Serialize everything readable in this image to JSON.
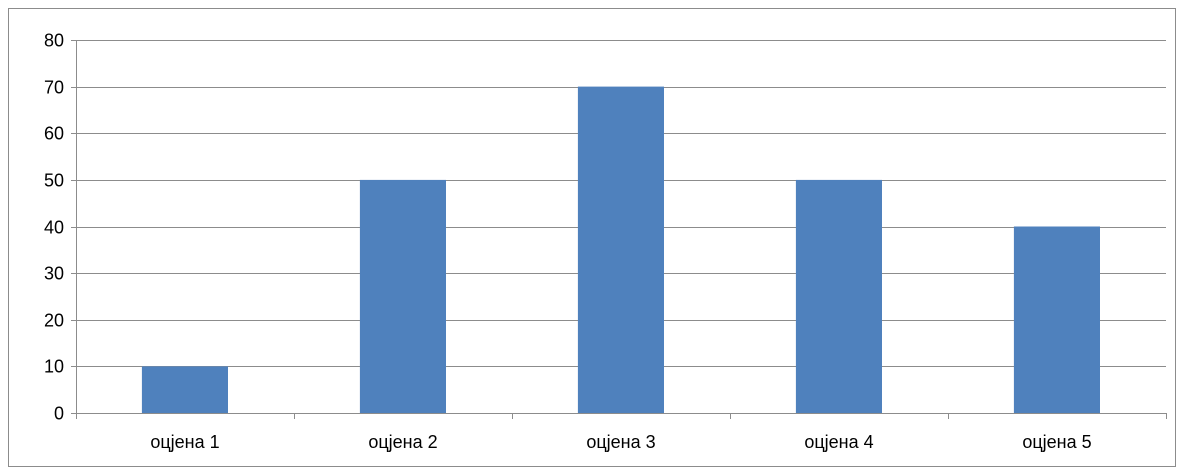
{
  "chart_data": {
    "type": "bar",
    "categories": [
      "оцјена 1",
      "оцјена 2",
      "оцјена 3",
      "оцјена 4",
      "оцјена 5"
    ],
    "values": [
      10,
      50,
      70,
      50,
      40
    ],
    "ylim": [
      0,
      80
    ],
    "yticks": [
      0,
      10,
      20,
      30,
      40,
      50,
      60,
      70,
      80
    ],
    "title": "",
    "xlabel": "",
    "ylabel": "",
    "grid": true,
    "legend": "none",
    "bar_color": "#4f81bd",
    "grid_color": "#8c8c8c"
  }
}
